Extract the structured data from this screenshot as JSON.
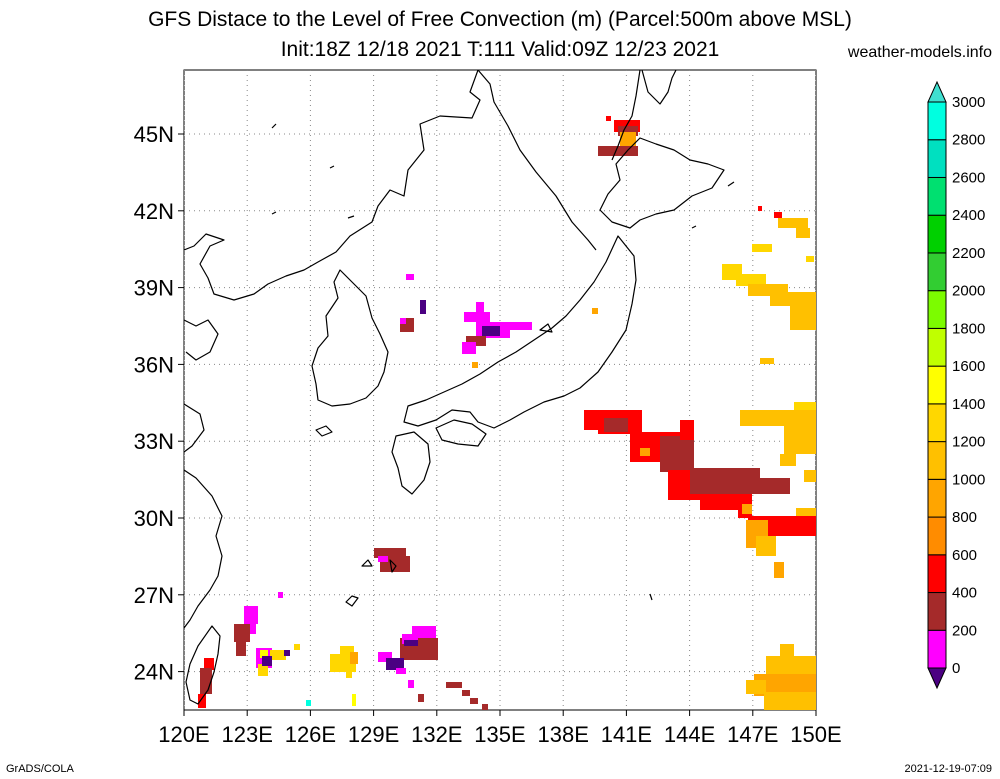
{
  "title": {
    "line1": "GFS Distace to the Level of Free Convection (m) (Parcel:500m above MSL)",
    "line2": "Init:18Z 12/18 2021 T:111 Valid:09Z 12/23 2021"
  },
  "site": "weather-models.info",
  "footer": {
    "left": "GrADS/COLA",
    "right": "2021-12-19-07:09"
  },
  "map": {
    "lon_range": [
      120,
      150
    ],
    "lat_range": [
      22.5,
      47.5
    ],
    "lon_ticks": [
      {
        "value": 120,
        "label": "120E"
      },
      {
        "value": 123,
        "label": "123E"
      },
      {
        "value": 126,
        "label": "126E"
      },
      {
        "value": 129,
        "label": "129E"
      },
      {
        "value": 132,
        "label": "132E"
      },
      {
        "value": 135,
        "label": "135E"
      },
      {
        "value": 138,
        "label": "138E"
      },
      {
        "value": 141,
        "label": "141E"
      },
      {
        "value": 144,
        "label": "144E"
      },
      {
        "value": 147,
        "label": "147E"
      },
      {
        "value": 150,
        "label": "150E"
      }
    ],
    "lat_ticks": [
      {
        "value": 24,
        "label": "24N"
      },
      {
        "value": 27,
        "label": "27N"
      },
      {
        "value": 30,
        "label": "30N"
      },
      {
        "value": 33,
        "label": "33N"
      },
      {
        "value": 36,
        "label": "36N"
      },
      {
        "value": 39,
        "label": "39N"
      },
      {
        "value": 42,
        "label": "42N"
      },
      {
        "value": 45,
        "label": "45N"
      }
    ]
  },
  "colorbar": {
    "levels": [
      {
        "label": "0"
      },
      {
        "label": "200"
      },
      {
        "label": "400"
      },
      {
        "label": "600"
      },
      {
        "label": "800"
      },
      {
        "label": "1000"
      },
      {
        "label": "1200"
      },
      {
        "label": "1400"
      },
      {
        "label": "1600"
      },
      {
        "label": "1800"
      },
      {
        "label": "2000"
      },
      {
        "label": "2200"
      },
      {
        "label": "2400"
      },
      {
        "label": "2600"
      },
      {
        "label": "2800"
      },
      {
        "label": "3000"
      }
    ],
    "colors": [
      "#4b0082",
      "#ff00ff",
      "#a52a2a",
      "#ff0000",
      "#ff8c00",
      "#ffa500",
      "#ffc000",
      "#ffd700",
      "#ffff00",
      "#c0ff00",
      "#7cfc00",
      "#32cd32",
      "#00d000",
      "#00e070",
      "#00e0c0",
      "#00ffe0",
      "#40e0d0"
    ],
    "under_color": "#4b0082",
    "over_color": "#40e0d0"
  }
}
